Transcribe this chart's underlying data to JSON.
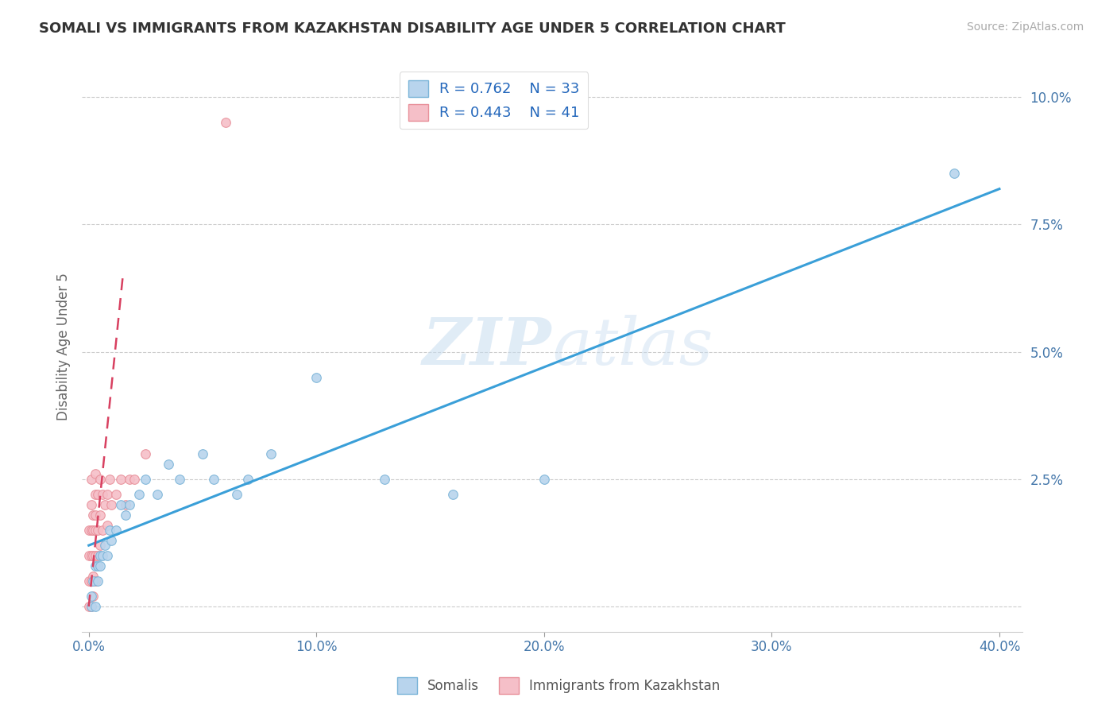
{
  "title": "SOMALI VS IMMIGRANTS FROM KAZAKHSTAN DISABILITY AGE UNDER 5 CORRELATION CHART",
  "source": "Source: ZipAtlas.com",
  "xlabel": "",
  "ylabel": "Disability Age Under 5",
  "xlim": [
    -0.003,
    0.41
  ],
  "ylim": [
    -0.005,
    0.107
  ],
  "xticks": [
    0.0,
    0.1,
    0.2,
    0.3,
    0.4
  ],
  "xticklabels": [
    "0.0%",
    "10.0%",
    "20.0%",
    "30.0%",
    "40.0%"
  ],
  "yticks": [
    0.0,
    0.025,
    0.05,
    0.075,
    0.1
  ],
  "yticklabels": [
    "",
    "2.5%",
    "5.0%",
    "7.5%",
    "10.0%"
  ],
  "somali_color": "#b8d4ed",
  "somali_edge": "#7ab4d8",
  "kazakh_color": "#f5bfc8",
  "kazakh_edge": "#e8909a",
  "trend_somali_color": "#3a9fd8",
  "trend_kazakh_color": "#d84060",
  "watermark_color": "#c8ddf0",
  "R_somali": 0.762,
  "N_somali": 33,
  "R_kazakh": 0.443,
  "N_kazakh": 41,
  "somali_x": [
    0.001,
    0.001,
    0.002,
    0.003,
    0.003,
    0.004,
    0.004,
    0.005,
    0.005,
    0.006,
    0.007,
    0.008,
    0.009,
    0.01,
    0.012,
    0.014,
    0.016,
    0.018,
    0.022,
    0.025,
    0.03,
    0.035,
    0.04,
    0.05,
    0.055,
    0.065,
    0.07,
    0.08,
    0.1,
    0.13,
    0.16,
    0.2,
    0.38
  ],
  "somali_y": [
    0.002,
    0.0,
    0.005,
    0.0,
    0.008,
    0.005,
    0.008,
    0.008,
    0.01,
    0.01,
    0.012,
    0.01,
    0.015,
    0.013,
    0.015,
    0.02,
    0.018,
    0.02,
    0.022,
    0.025,
    0.022,
    0.028,
    0.025,
    0.03,
    0.025,
    0.022,
    0.025,
    0.03,
    0.045,
    0.025,
    0.022,
    0.025,
    0.085
  ],
  "kazakh_x": [
    0.0,
    0.0,
    0.0,
    0.0,
    0.001,
    0.001,
    0.001,
    0.001,
    0.001,
    0.001,
    0.002,
    0.002,
    0.002,
    0.002,
    0.002,
    0.003,
    0.003,
    0.003,
    0.003,
    0.003,
    0.003,
    0.004,
    0.004,
    0.004,
    0.005,
    0.005,
    0.005,
    0.006,
    0.006,
    0.007,
    0.008,
    0.008,
    0.009,
    0.01,
    0.012,
    0.014,
    0.016,
    0.018,
    0.02,
    0.025,
    0.06
  ],
  "kazakh_y": [
    0.0,
    0.005,
    0.01,
    0.015,
    0.0,
    0.005,
    0.01,
    0.015,
    0.02,
    0.025,
    0.002,
    0.006,
    0.01,
    0.015,
    0.018,
    0.005,
    0.01,
    0.015,
    0.018,
    0.022,
    0.026,
    0.01,
    0.015,
    0.022,
    0.012,
    0.018,
    0.025,
    0.015,
    0.022,
    0.02,
    0.016,
    0.022,
    0.025,
    0.02,
    0.022,
    0.025,
    0.02,
    0.025,
    0.025,
    0.03,
    0.095
  ],
  "trend_somali_x0": 0.0,
  "trend_somali_x1": 0.4,
  "trend_somali_y0": 0.012,
  "trend_somali_y1": 0.082,
  "trend_kazakh_x0": 0.0,
  "trend_kazakh_x1": 0.015,
  "trend_kazakh_y0": 0.0,
  "trend_kazakh_y1": 0.065
}
